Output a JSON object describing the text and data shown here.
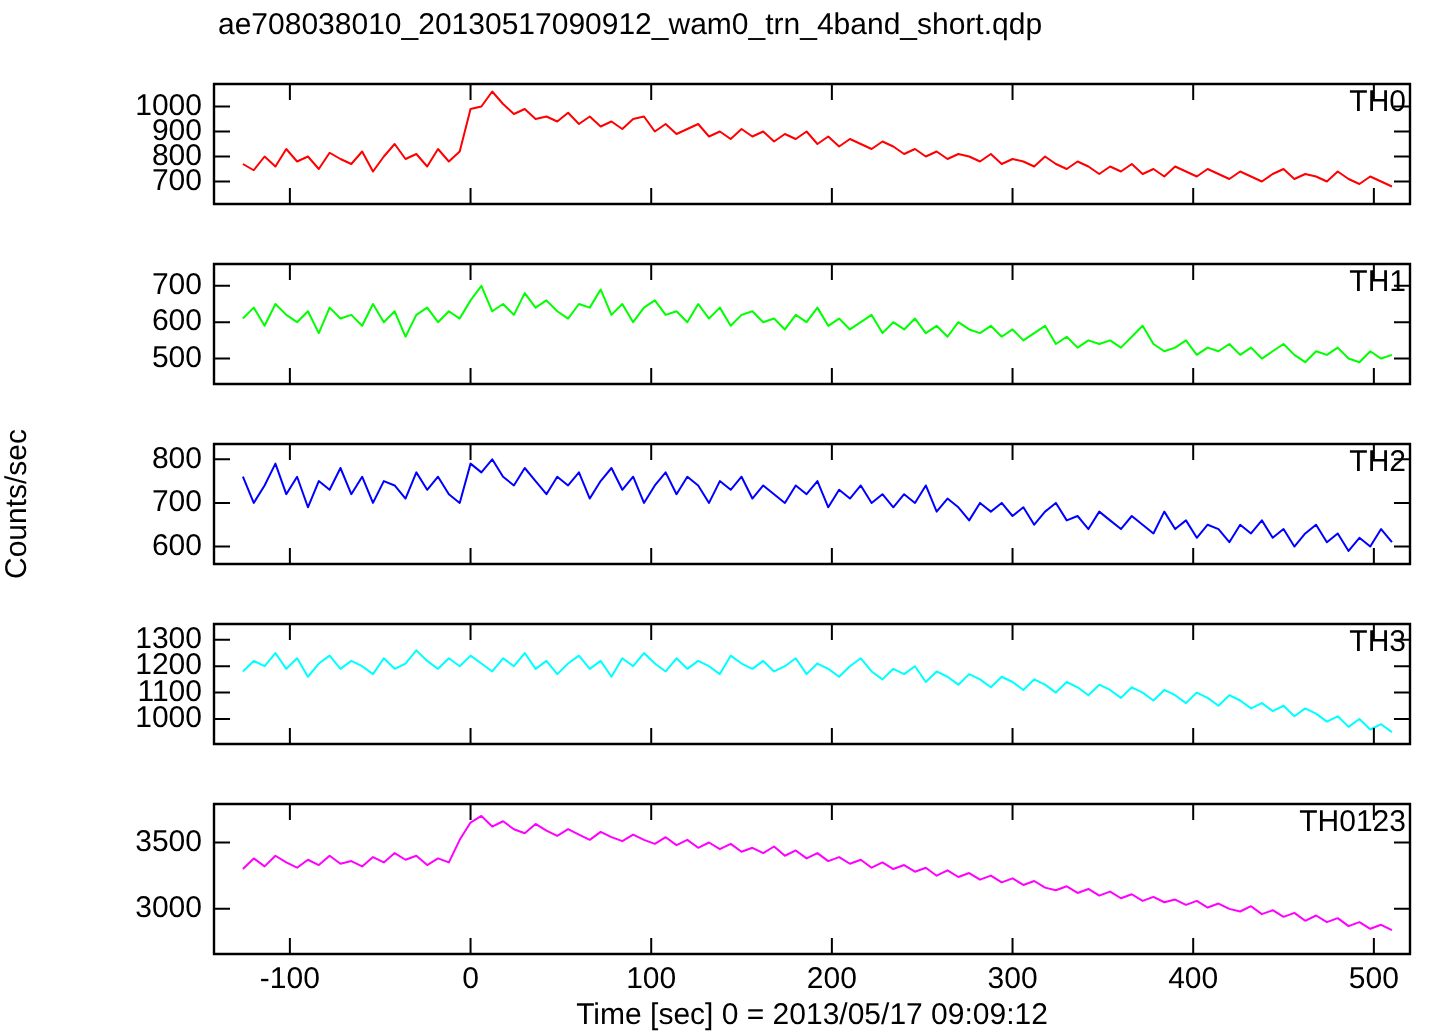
{
  "chart_data": [
    {
      "type": "line",
      "title": "ae708038010_20130517090912_wam0_trn_4band_short.qdp",
      "annotations": [
        "TH0"
      ],
      "tick_labels": "y",
      "xlim": [
        -142,
        520
      ],
      "xticks": [
        -100,
        0,
        100,
        200,
        300,
        400,
        500
      ],
      "ylim": [
        610,
        1090
      ],
      "yticks": [
        700,
        800,
        900,
        1000
      ],
      "x": [
        -126,
        -120,
        -114,
        -108,
        -102,
        -96,
        -90,
        -84,
        -78,
        -72,
        -66,
        -60,
        -54,
        -48,
        -42,
        -36,
        -30,
        -24,
        -18,
        -12,
        -6,
        0,
        6,
        12,
        18,
        24,
        30,
        36,
        42,
        48,
        54,
        60,
        66,
        72,
        78,
        84,
        90,
        96,
        102,
        108,
        114,
        120,
        126,
        132,
        138,
        144,
        150,
        156,
        162,
        168,
        174,
        180,
        186,
        192,
        198,
        204,
        210,
        216,
        222,
        228,
        234,
        240,
        246,
        252,
        258,
        264,
        270,
        276,
        282,
        288,
        294,
        300,
        306,
        312,
        318,
        324,
        330,
        336,
        342,
        348,
        354,
        360,
        366,
        372,
        378,
        384,
        390,
        396,
        402,
        408,
        414,
        420,
        426,
        432,
        438,
        444,
        450,
        456,
        462,
        468,
        474,
        480,
        486,
        492,
        498,
        504,
        510
      ],
      "series": [
        {
          "color": "#ff0000",
          "values": [
            770,
            745,
            800,
            760,
            830,
            780,
            800,
            750,
            815,
            790,
            770,
            820,
            740,
            800,
            850,
            790,
            810,
            760,
            830,
            780,
            820,
            990,
            1000,
            1060,
            1010,
            970,
            990,
            950,
            960,
            940,
            975,
            930,
            960,
            920,
            940,
            910,
            950,
            960,
            900,
            930,
            890,
            910,
            930,
            880,
            900,
            870,
            910,
            880,
            900,
            860,
            890,
            870,
            900,
            850,
            880,
            840,
            870,
            850,
            830,
            860,
            840,
            810,
            830,
            800,
            820,
            790,
            810,
            800,
            780,
            810,
            770,
            790,
            780,
            760,
            800,
            770,
            750,
            780,
            760,
            730,
            760,
            740,
            770,
            730,
            750,
            720,
            760,
            740,
            720,
            750,
            730,
            710,
            740,
            720,
            700,
            730,
            750,
            710,
            730,
            720,
            700,
            740,
            710,
            690,
            720,
            700,
            680
          ]
        }
      ]
    },
    {
      "type": "line",
      "annotations": [
        "TH1"
      ],
      "tick_labels": "y",
      "xlim": [
        -142,
        520
      ],
      "xticks": [
        -100,
        0,
        100,
        200,
        300,
        400,
        500
      ],
      "ylim": [
        430,
        760
      ],
      "yticks": [
        500,
        600,
        700
      ],
      "x": [
        -126,
        -120,
        -114,
        -108,
        -102,
        -96,
        -90,
        -84,
        -78,
        -72,
        -66,
        -60,
        -54,
        -48,
        -42,
        -36,
        -30,
        -24,
        -18,
        -12,
        -6,
        0,
        6,
        12,
        18,
        24,
        30,
        36,
        42,
        48,
        54,
        60,
        66,
        72,
        78,
        84,
        90,
        96,
        102,
        108,
        114,
        120,
        126,
        132,
        138,
        144,
        150,
        156,
        162,
        168,
        174,
        180,
        186,
        192,
        198,
        204,
        210,
        216,
        222,
        228,
        234,
        240,
        246,
        252,
        258,
        264,
        270,
        276,
        282,
        288,
        294,
        300,
        306,
        312,
        318,
        324,
        330,
        336,
        342,
        348,
        354,
        360,
        366,
        372,
        378,
        384,
        390,
        396,
        402,
        408,
        414,
        420,
        426,
        432,
        438,
        444,
        450,
        456,
        462,
        468,
        474,
        480,
        486,
        492,
        498,
        504,
        510
      ],
      "series": [
        {
          "color": "#00ff00",
          "values": [
            610,
            640,
            590,
            650,
            620,
            600,
            630,
            570,
            640,
            610,
            620,
            590,
            650,
            600,
            630,
            560,
            620,
            640,
            600,
            630,
            610,
            660,
            700,
            630,
            650,
            620,
            680,
            640,
            660,
            630,
            610,
            650,
            640,
            690,
            620,
            650,
            600,
            640,
            660,
            620,
            630,
            600,
            650,
            610,
            640,
            590,
            620,
            630,
            600,
            610,
            580,
            620,
            600,
            640,
            590,
            610,
            580,
            600,
            620,
            570,
            600,
            580,
            610,
            570,
            590,
            560,
            600,
            580,
            570,
            590,
            560,
            580,
            550,
            570,
            590,
            540,
            560,
            530,
            550,
            540,
            550,
            530,
            560,
            590,
            540,
            520,
            530,
            550,
            510,
            530,
            520,
            540,
            510,
            530,
            500,
            520,
            540,
            510,
            490,
            520,
            510,
            530,
            500,
            490,
            520,
            500,
            510
          ]
        }
      ]
    },
    {
      "type": "line",
      "annotations": [
        "TH2"
      ],
      "ylabel": "Counts/sec",
      "tick_labels": "y",
      "xlim": [
        -142,
        520
      ],
      "xticks": [
        -100,
        0,
        100,
        200,
        300,
        400,
        500
      ],
      "ylim": [
        560,
        835
      ],
      "yticks": [
        600,
        700,
        800
      ],
      "x": [
        -126,
        -120,
        -114,
        -108,
        -102,
        -96,
        -90,
        -84,
        -78,
        -72,
        -66,
        -60,
        -54,
        -48,
        -42,
        -36,
        -30,
        -24,
        -18,
        -12,
        -6,
        0,
        6,
        12,
        18,
        24,
        30,
        36,
        42,
        48,
        54,
        60,
        66,
        72,
        78,
        84,
        90,
        96,
        102,
        108,
        114,
        120,
        126,
        132,
        138,
        144,
        150,
        156,
        162,
        168,
        174,
        180,
        186,
        192,
        198,
        204,
        210,
        216,
        222,
        228,
        234,
        240,
        246,
        252,
        258,
        264,
        270,
        276,
        282,
        288,
        294,
        300,
        306,
        312,
        318,
        324,
        330,
        336,
        342,
        348,
        354,
        360,
        366,
        372,
        378,
        384,
        390,
        396,
        402,
        408,
        414,
        420,
        426,
        432,
        438,
        444,
        450,
        456,
        462,
        468,
        474,
        480,
        486,
        492,
        498,
        504,
        510
      ],
      "series": [
        {
          "color": "#0000ff",
          "values": [
            760,
            700,
            740,
            790,
            720,
            760,
            690,
            750,
            730,
            780,
            720,
            760,
            700,
            750,
            740,
            710,
            770,
            730,
            760,
            720,
            700,
            790,
            770,
            800,
            760,
            740,
            780,
            750,
            720,
            760,
            740,
            770,
            710,
            750,
            780,
            730,
            760,
            700,
            740,
            770,
            720,
            760,
            740,
            700,
            750,
            730,
            760,
            710,
            740,
            720,
            700,
            740,
            720,
            750,
            690,
            730,
            710,
            740,
            700,
            720,
            690,
            720,
            700,
            740,
            680,
            710,
            690,
            660,
            700,
            680,
            700,
            670,
            690,
            650,
            680,
            700,
            660,
            670,
            640,
            680,
            660,
            640,
            670,
            650,
            630,
            680,
            640,
            660,
            620,
            650,
            640,
            610,
            650,
            630,
            660,
            620,
            640,
            600,
            630,
            650,
            610,
            630,
            590,
            620,
            600,
            640,
            610
          ]
        }
      ]
    },
    {
      "type": "line",
      "annotations": [
        "TH3"
      ],
      "tick_labels": "y",
      "xlim": [
        -142,
        520
      ],
      "xticks": [
        -100,
        0,
        100,
        200,
        300,
        400,
        500
      ],
      "ylim": [
        905,
        1360
      ],
      "yticks": [
        1000,
        1100,
        1200,
        1300
      ],
      "x": [
        -126,
        -120,
        -114,
        -108,
        -102,
        -96,
        -90,
        -84,
        -78,
        -72,
        -66,
        -60,
        -54,
        -48,
        -42,
        -36,
        -30,
        -24,
        -18,
        -12,
        -6,
        0,
        6,
        12,
        18,
        24,
        30,
        36,
        42,
        48,
        54,
        60,
        66,
        72,
        78,
        84,
        90,
        96,
        102,
        108,
        114,
        120,
        126,
        132,
        138,
        144,
        150,
        156,
        162,
        168,
        174,
        180,
        186,
        192,
        198,
        204,
        210,
        216,
        222,
        228,
        234,
        240,
        246,
        252,
        258,
        264,
        270,
        276,
        282,
        288,
        294,
        300,
        306,
        312,
        318,
        324,
        330,
        336,
        342,
        348,
        354,
        360,
        366,
        372,
        378,
        384,
        390,
        396,
        402,
        408,
        414,
        420,
        426,
        432,
        438,
        444,
        450,
        456,
        462,
        468,
        474,
        480,
        486,
        492,
        498,
        504,
        510
      ],
      "series": [
        {
          "color": "#00ffff",
          "values": [
            1180,
            1220,
            1200,
            1250,
            1190,
            1230,
            1160,
            1210,
            1240,
            1190,
            1220,
            1200,
            1170,
            1230,
            1190,
            1210,
            1260,
            1220,
            1190,
            1230,
            1200,
            1240,
            1210,
            1180,
            1230,
            1200,
            1250,
            1190,
            1220,
            1170,
            1210,
            1240,
            1190,
            1220,
            1160,
            1230,
            1200,
            1250,
            1210,
            1180,
            1230,
            1190,
            1220,
            1200,
            1170,
            1240,
            1210,
            1190,
            1220,
            1180,
            1200,
            1230,
            1170,
            1210,
            1190,
            1160,
            1200,
            1230,
            1180,
            1150,
            1190,
            1170,
            1200,
            1140,
            1180,
            1160,
            1130,
            1170,
            1150,
            1120,
            1160,
            1140,
            1110,
            1150,
            1130,
            1100,
            1140,
            1120,
            1090,
            1130,
            1110,
            1080,
            1120,
            1100,
            1070,
            1110,
            1090,
            1060,
            1100,
            1080,
            1050,
            1090,
            1070,
            1040,
            1060,
            1030,
            1050,
            1010,
            1040,
            1020,
            990,
            1010,
            970,
            1000,
            960,
            980,
            950
          ]
        }
      ]
    },
    {
      "type": "line",
      "annotations": [
        "TH0123"
      ],
      "xlabel": "Time [sec] 0 = 2013/05/17 09:09:12",
      "xlim": [
        -142,
        520
      ],
      "xticks": [
        -100,
        0,
        100,
        200,
        300,
        400,
        500
      ],
      "ylim": [
        2660,
        3790
      ],
      "yticks": [
        3000,
        3500
      ],
      "x": [
        -126,
        -120,
        -114,
        -108,
        -102,
        -96,
        -90,
        -84,
        -78,
        -72,
        -66,
        -60,
        -54,
        -48,
        -42,
        -36,
        -30,
        -24,
        -18,
        -12,
        -6,
        0,
        6,
        12,
        18,
        24,
        30,
        36,
        42,
        48,
        54,
        60,
        66,
        72,
        78,
        84,
        90,
        96,
        102,
        108,
        114,
        120,
        126,
        132,
        138,
        144,
        150,
        156,
        162,
        168,
        174,
        180,
        186,
        192,
        198,
        204,
        210,
        216,
        222,
        228,
        234,
        240,
        246,
        252,
        258,
        264,
        270,
        276,
        282,
        288,
        294,
        300,
        306,
        312,
        318,
        324,
        330,
        336,
        342,
        348,
        354,
        360,
        366,
        372,
        378,
        384,
        390,
        396,
        402,
        408,
        414,
        420,
        426,
        432,
        438,
        444,
        450,
        456,
        462,
        468,
        474,
        480,
        486,
        492,
        498,
        504,
        510
      ],
      "series": [
        {
          "color": "#ff00ff",
          "values": [
            3300,
            3380,
            3320,
            3400,
            3350,
            3310,
            3370,
            3330,
            3400,
            3340,
            3360,
            3320,
            3390,
            3350,
            3420,
            3370,
            3400,
            3330,
            3380,
            3350,
            3520,
            3650,
            3700,
            3620,
            3660,
            3600,
            3570,
            3640,
            3590,
            3550,
            3600,
            3560,
            3520,
            3580,
            3540,
            3510,
            3560,
            3520,
            3490,
            3540,
            3480,
            3520,
            3460,
            3500,
            3450,
            3490,
            3430,
            3460,
            3420,
            3470,
            3400,
            3440,
            3380,
            3420,
            3360,
            3390,
            3340,
            3370,
            3310,
            3350,
            3300,
            3330,
            3280,
            3310,
            3250,
            3290,
            3240,
            3270,
            3220,
            3250,
            3200,
            3230,
            3180,
            3210,
            3160,
            3140,
            3170,
            3120,
            3150,
            3100,
            3130,
            3080,
            3110,
            3060,
            3090,
            3050,
            3070,
            3030,
            3060,
            3010,
            3040,
            3000,
            2980,
            3020,
            2960,
            2990,
            2940,
            2970,
            2910,
            2950,
            2900,
            2930,
            2870,
            2900,
            2850,
            2880,
            2840
          ]
        }
      ]
    }
  ]
}
